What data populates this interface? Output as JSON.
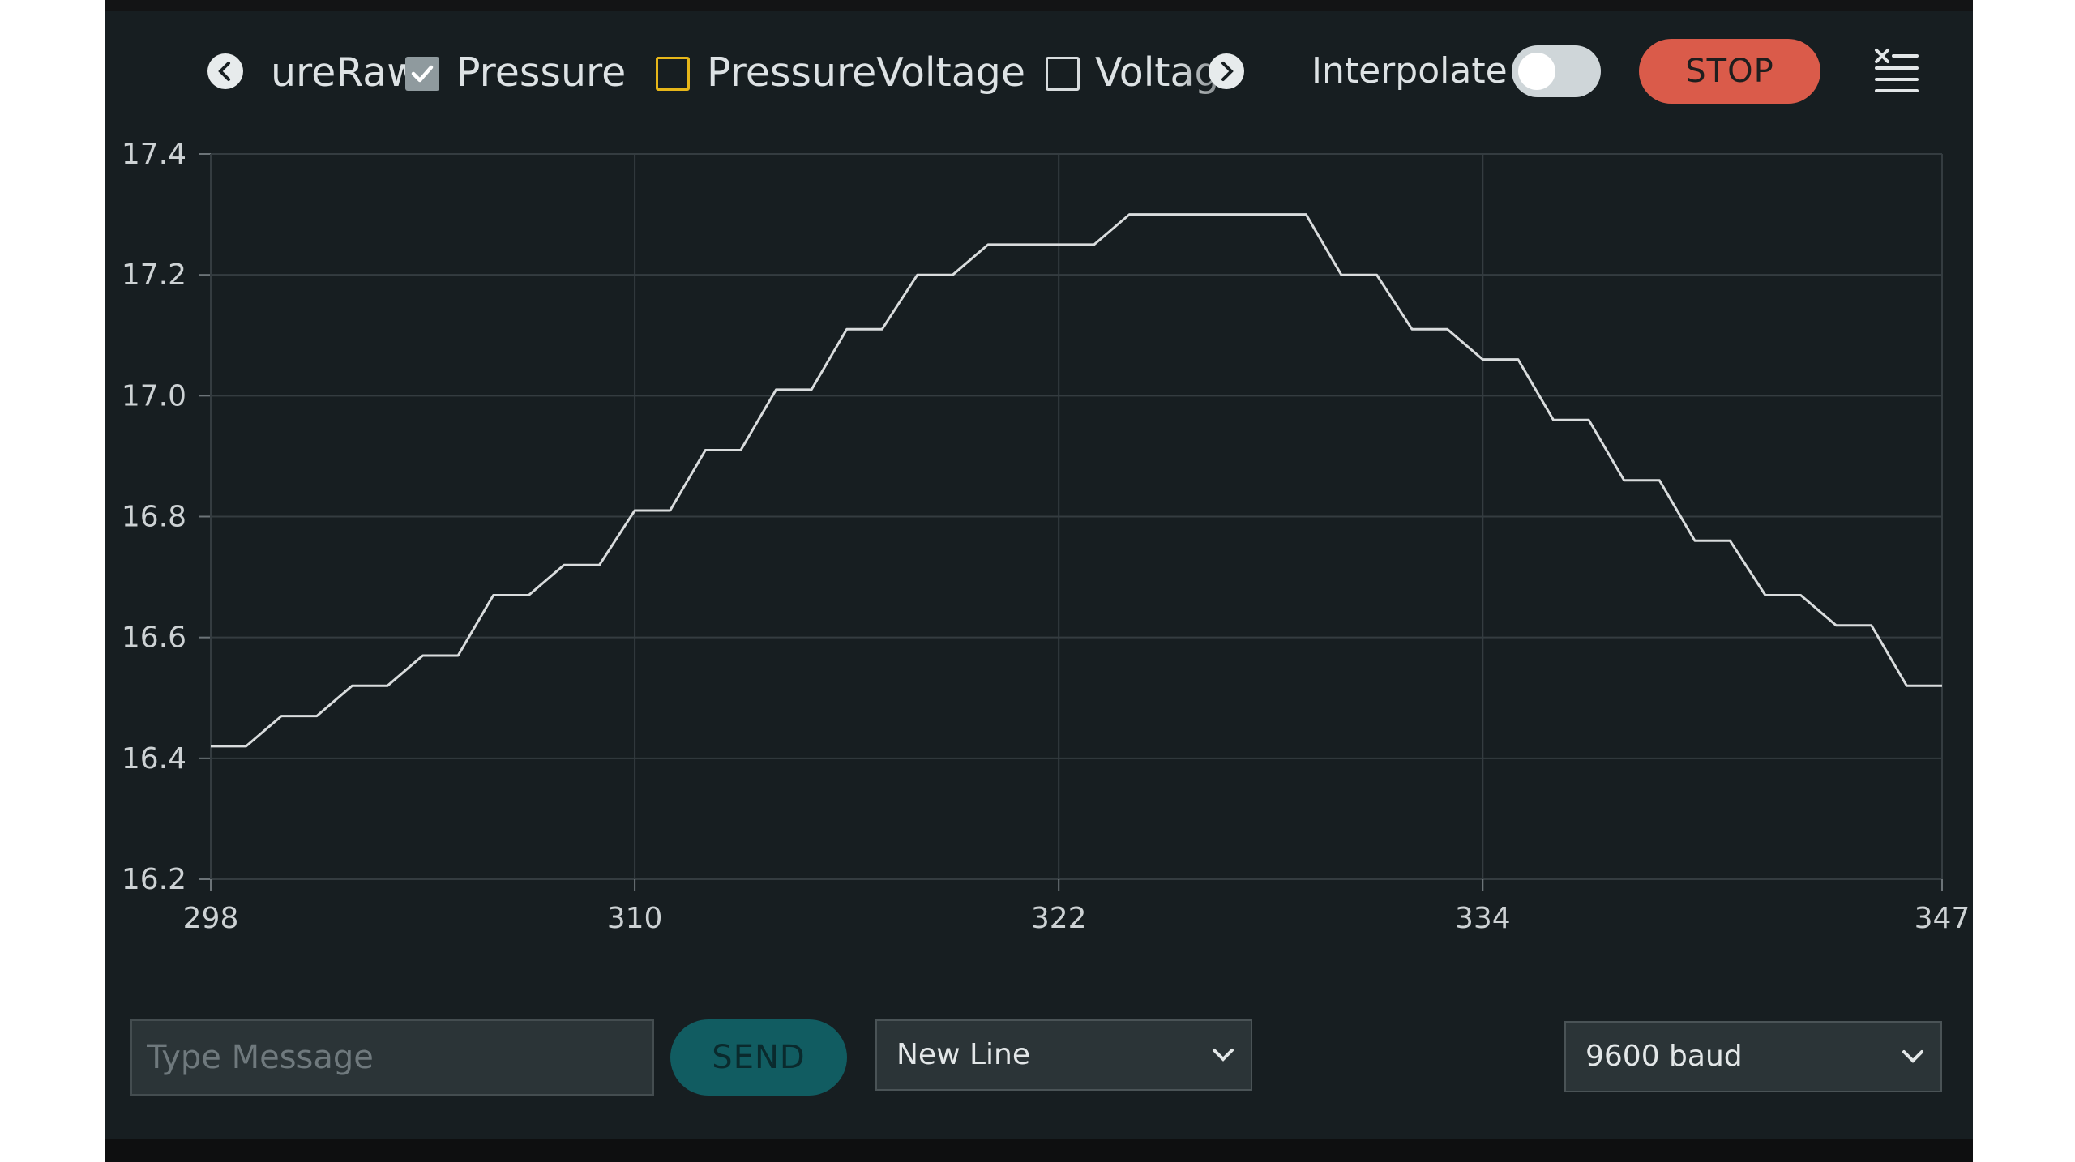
{
  "legend": {
    "items": [
      {
        "label": "ureRaw",
        "checked": null
      },
      {
        "label": "Pressure",
        "checked": true
      },
      {
        "label": "PressureVoltage",
        "checked": false,
        "color": "#e6b619"
      },
      {
        "label": "Voltag",
        "checked": false
      }
    ],
    "left_arrow_icon": "chevron-left-icon",
    "right_arrow_icon": "chevron-right-icon"
  },
  "controls": {
    "interpolate_label": "Interpolate",
    "interpolate_on": false,
    "stop_label": "STOP",
    "menu_icon": "clear-list-icon"
  },
  "colors": {
    "background": "#171e21",
    "series_line": "#d9dcdd",
    "grid": "#343c40",
    "stop_button": "#da5b4a",
    "send_button": "#115c61"
  },
  "chart_data": {
    "type": "line",
    "x_ticks": [
      "298",
      "310",
      "322",
      "334",
      "347"
    ],
    "y_ticks": [
      "17.4",
      "17.2",
      "17.0",
      "16.8",
      "16.6",
      "16.4",
      "16.2"
    ],
    "xlim": [
      298,
      347
    ],
    "ylim": [
      16.2,
      17.4
    ],
    "grid": true,
    "series": [
      {
        "name": "Pressure",
        "x": [
          298,
          299,
          300,
          301,
          302,
          303,
          304,
          305,
          306,
          307,
          308,
          309,
          310,
          311,
          312,
          313,
          314,
          315,
          316,
          317,
          318,
          319,
          320,
          321,
          322,
          323,
          324,
          325,
          326,
          327,
          328,
          329,
          330,
          331,
          332,
          333,
          334,
          335,
          336,
          337,
          338,
          339,
          340,
          341,
          342,
          343,
          344,
          345,
          346,
          347
        ],
        "y": [
          16.42,
          16.42,
          16.47,
          16.47,
          16.52,
          16.52,
          16.57,
          16.57,
          16.67,
          16.67,
          16.72,
          16.72,
          16.81,
          16.81,
          16.91,
          16.91,
          17.01,
          17.01,
          17.11,
          17.11,
          17.2,
          17.2,
          17.25,
          17.25,
          17.25,
          17.25,
          17.3,
          17.3,
          17.3,
          17.3,
          17.3,
          17.3,
          17.2,
          17.2,
          17.11,
          17.11,
          17.06,
          17.06,
          16.96,
          16.96,
          16.86,
          16.86,
          16.76,
          16.76,
          16.67,
          16.67,
          16.62,
          16.62,
          16.52,
          16.52
        ]
      }
    ]
  },
  "footer": {
    "message_placeholder": "Type Message",
    "send_label": "SEND",
    "line_ending": "New Line",
    "baud_rate": "9600 baud"
  }
}
